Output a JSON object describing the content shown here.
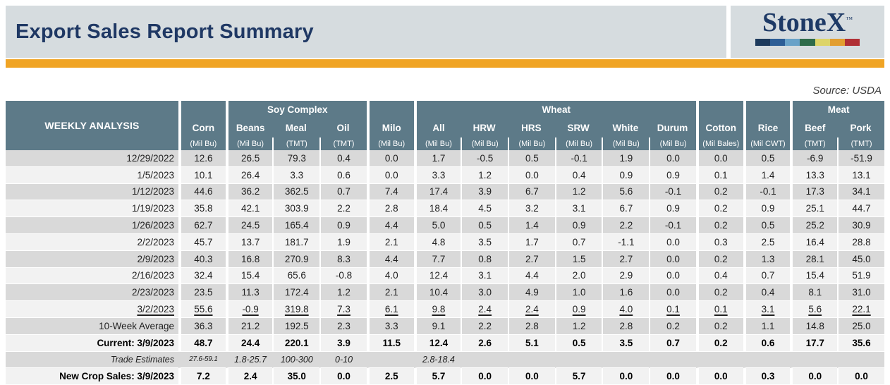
{
  "page": {
    "title": "Export Sales Report Summary",
    "source_note": "Source: USDA"
  },
  "logo": {
    "text": "StoneX",
    "tm": "™",
    "bar_colors": [
      "#1d3a5c",
      "#2d5e96",
      "#69a2c8",
      "#2e6b4a",
      "#ddd468",
      "#e29e30",
      "#b02f35"
    ]
  },
  "colors": {
    "accent_orange": "#f0a424",
    "banner_gray": "#d6dcdf",
    "header_slate": "#5d7a88",
    "title_navy": "#1f3864",
    "stripe_dark": "#d9d9d9",
    "stripe_light": "#f2f2f2"
  },
  "table": {
    "corner_label": "WEEKLY ANALYSIS",
    "groups": {
      "soy": "Soy Complex",
      "wheat": "Wheat",
      "meat": "Meat"
    },
    "columns": [
      {
        "name": "Corn",
        "unit": "(Mil Bu)"
      },
      {
        "name": "Beans",
        "unit": "(Mil Bu)"
      },
      {
        "name": "Meal",
        "unit": "(TMT)"
      },
      {
        "name": "Oil",
        "unit": "(TMT)"
      },
      {
        "name": "Milo",
        "unit": "(Mil Bu)"
      },
      {
        "name": "All",
        "unit": "(Mil Bu)"
      },
      {
        "name": "HRW",
        "unit": "(Mil Bu)"
      },
      {
        "name": "HRS",
        "unit": "(Mil Bu)"
      },
      {
        "name": "SRW",
        "unit": "(Mil Bu)"
      },
      {
        "name": "White",
        "unit": "(Mil Bu)"
      },
      {
        "name": "Durum",
        "unit": "(Mil Bu)"
      },
      {
        "name": "Cotton",
        "unit": "(Mil Bales)"
      },
      {
        "name": "Rice",
        "unit": "(Mil CWT)"
      },
      {
        "name": "Beef",
        "unit": "(TMT)"
      },
      {
        "name": "Pork",
        "unit": "(TMT)"
      }
    ],
    "rows": [
      {
        "label": "12/29/2022",
        "style": "normal",
        "values": [
          "12.6",
          "26.5",
          "79.3",
          "0.4",
          "0.0",
          "1.7",
          "-0.5",
          "0.5",
          "-0.1",
          "1.9",
          "0.0",
          "0.0",
          "0.5",
          "-6.9",
          "-51.9"
        ]
      },
      {
        "label": "1/5/2023",
        "style": "normal",
        "values": [
          "10.1",
          "26.4",
          "3.3",
          "0.6",
          "0.0",
          "3.3",
          "1.2",
          "0.0",
          "0.4",
          "0.9",
          "0.9",
          "0.1",
          "1.4",
          "13.3",
          "13.1"
        ]
      },
      {
        "label": "1/12/2023",
        "style": "normal",
        "values": [
          "44.6",
          "36.2",
          "362.5",
          "0.7",
          "7.4",
          "17.4",
          "3.9",
          "6.7",
          "1.2",
          "5.6",
          "-0.1",
          "0.2",
          "-0.1",
          "17.3",
          "34.1"
        ]
      },
      {
        "label": "1/19/2023",
        "style": "normal",
        "values": [
          "35.8",
          "42.1",
          "303.9",
          "2.2",
          "2.8",
          "18.4",
          "4.5",
          "3.2",
          "3.1",
          "6.7",
          "0.9",
          "0.2",
          "0.9",
          "25.1",
          "44.7"
        ]
      },
      {
        "label": "1/26/2023",
        "style": "normal",
        "values": [
          "62.7",
          "24.5",
          "165.4",
          "0.9",
          "4.4",
          "5.0",
          "0.5",
          "1.4",
          "0.9",
          "2.2",
          "-0.1",
          "0.2",
          "0.5",
          "25.2",
          "30.9"
        ]
      },
      {
        "label": "2/2/2023",
        "style": "normal",
        "values": [
          "45.7",
          "13.7",
          "181.7",
          "1.9",
          "2.1",
          "4.8",
          "3.5",
          "1.7",
          "0.7",
          "-1.1",
          "0.0",
          "0.3",
          "2.5",
          "16.4",
          "28.8"
        ]
      },
      {
        "label": "2/9/2023",
        "style": "normal",
        "values": [
          "40.3",
          "16.8",
          "270.9",
          "8.3",
          "4.4",
          "7.7",
          "0.8",
          "2.7",
          "1.5",
          "2.7",
          "0.0",
          "0.2",
          "1.3",
          "28.1",
          "45.0"
        ]
      },
      {
        "label": "2/16/2023",
        "style": "normal",
        "values": [
          "32.4",
          "15.4",
          "65.6",
          "-0.8",
          "4.0",
          "12.4",
          "3.1",
          "4.4",
          "2.0",
          "2.9",
          "0.0",
          "0.4",
          "0.7",
          "15.4",
          "51.9"
        ]
      },
      {
        "label": "2/23/2023",
        "style": "normal",
        "values": [
          "23.5",
          "11.3",
          "172.4",
          "1.2",
          "2.1",
          "10.4",
          "3.0",
          "4.9",
          "1.0",
          "1.6",
          "0.0",
          "0.2",
          "0.4",
          "8.1",
          "31.0"
        ]
      },
      {
        "label": "3/2/2023",
        "style": "underline",
        "values": [
          "55.6",
          "-0.9",
          "319.8",
          "7.3",
          "6.1",
          "9.8",
          "2.4",
          "2.4",
          "0.9",
          "4.0",
          "0.1",
          "0.1",
          "3.1",
          "5.6",
          "22.1"
        ]
      },
      {
        "label": "10-Week Average",
        "style": "normal",
        "values": [
          "36.3",
          "21.2",
          "192.5",
          "2.3",
          "3.3",
          "9.1",
          "2.2",
          "2.8",
          "1.2",
          "2.8",
          "0.2",
          "0.2",
          "1.1",
          "14.8",
          "25.0"
        ]
      },
      {
        "label": "Current: 3/9/2023",
        "style": "bold",
        "values": [
          "48.7",
          "24.4",
          "220.1",
          "3.9",
          "11.5",
          "12.4",
          "2.6",
          "5.1",
          "0.5",
          "3.5",
          "0.7",
          "0.2",
          "0.6",
          "17.7",
          "35.6"
        ]
      },
      {
        "label": "Trade Estimates",
        "style": "trade",
        "values": [
          "27.6-59.1",
          "1.8-25.7",
          "100-300",
          "0-10",
          "",
          "2.8-18.4",
          "",
          "",
          "",
          "",
          "",
          "",
          "",
          "",
          ""
        ]
      },
      {
        "label": "New Crop Sales: 3/9/2023",
        "style": "bold",
        "values": [
          "7.2",
          "2.4",
          "35.0",
          "0.0",
          "2.5",
          "5.7",
          "0.0",
          "0.0",
          "5.7",
          "0.0",
          "0.0",
          "0.0",
          "0.3",
          "0.0",
          "0.0"
        ]
      }
    ]
  }
}
